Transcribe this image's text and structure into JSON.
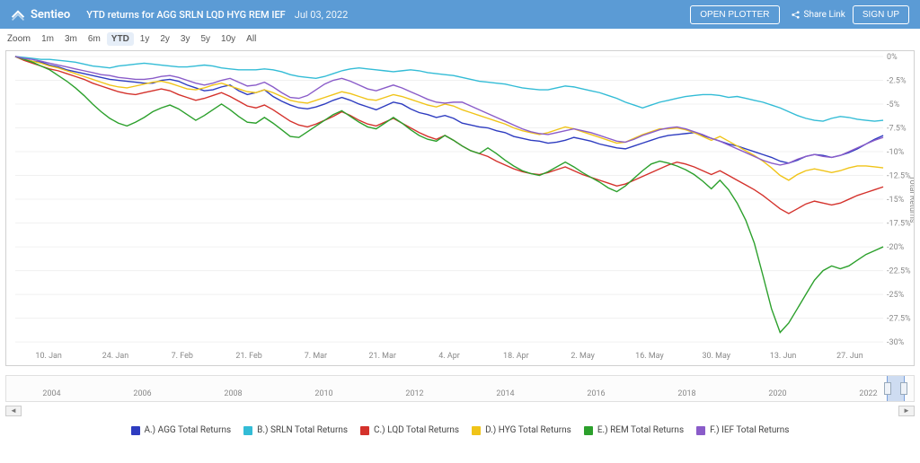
{
  "header": {
    "brand": "Sentieo",
    "title": "YTD returns for AGG SRLN LQD HYG REM IEF",
    "date": "Jul 03, 2022",
    "open_plotter_label": "OPEN PLOTTER",
    "share_label": "Share Link",
    "signup_label": "SIGN UP"
  },
  "zoom": {
    "label": "Zoom",
    "options": [
      "1m",
      "3m",
      "6m",
      "YTD",
      "1y",
      "2y",
      "3y",
      "5y",
      "10y",
      "All"
    ],
    "active": "YTD"
  },
  "chart": {
    "y_title": "Total Returns",
    "ylim": [
      -30,
      0
    ],
    "ytick_step": 2.5,
    "x_labels": [
      "10. Jan",
      "24. Jan",
      "7. Feb",
      "21. Feb",
      "7. Mar",
      "21. Mar",
      "4. Apr",
      "18. Apr",
      "2. May",
      "16. May",
      "30. May",
      "13. Jun",
      "27. Jun"
    ],
    "grid_color": "#f0f0f0",
    "series": [
      {
        "name": "A.) AGG Total Returns",
        "color": "#2e3cc0",
        "values": [
          0,
          -0.3,
          -0.5,
          -0.6,
          -0.9,
          -1.1,
          -1.4,
          -1.6,
          -1.8,
          -2.0,
          -2.2,
          -2.4,
          -2.5,
          -2.6,
          -2.7,
          -2.8,
          -2.8,
          -2.5,
          -2.4,
          -2.6,
          -3.0,
          -3.3,
          -3.6,
          -3.5,
          -3.2,
          -3.0,
          -3.6,
          -4.0,
          -3.8,
          -3.5,
          -4.2,
          -4.7,
          -5.1,
          -5.4,
          -5.5,
          -5.3,
          -5.0,
          -4.6,
          -4.3,
          -4.6,
          -5.0,
          -5.3,
          -5.6,
          -5.2,
          -4.8,
          -5.0,
          -5.5,
          -5.9,
          -6.1,
          -6.4,
          -6.2,
          -6.5,
          -7.0,
          -7.2,
          -7.4,
          -7.5,
          -7.8,
          -8.0,
          -8.4,
          -8.6,
          -8.8,
          -8.9,
          -9.1,
          -9.0,
          -8.8,
          -8.5,
          -8.7,
          -8.9,
          -9.2,
          -9.4,
          -9.6,
          -9.7,
          -9.4,
          -9.1,
          -8.8,
          -8.5,
          -8.3,
          -8.2,
          -8.1,
          -8.0,
          -8.3,
          -8.6,
          -8.9,
          -9.2,
          -9.4,
          -9.7,
          -10.0,
          -10.3,
          -10.6,
          -11.0,
          -11.2,
          -10.9,
          -10.5,
          -10.3,
          -10.4,
          -10.6,
          -10.4,
          -10.1,
          -9.7,
          -9.2,
          -8.7,
          -8.3
        ]
      },
      {
        "name": "B.) SRLN Total Returns",
        "color": "#33bcd6",
        "values": [
          0,
          -0.1,
          -0.2,
          -0.3,
          -0.3,
          -0.4,
          -0.5,
          -0.6,
          -0.8,
          -1.0,
          -1.1,
          -1.2,
          -1.0,
          -0.9,
          -0.8,
          -0.7,
          -0.8,
          -0.9,
          -1.0,
          -1.1,
          -1.1,
          -1.0,
          -0.9,
          -1.0,
          -1.2,
          -1.3,
          -1.4,
          -1.4,
          -1.4,
          -1.3,
          -1.4,
          -1.6,
          -1.9,
          -2.1,
          -2.2,
          -2.3,
          -2.1,
          -1.8,
          -1.5,
          -1.3,
          -1.2,
          -1.3,
          -1.4,
          -1.5,
          -1.6,
          -1.5,
          -1.4,
          -1.5,
          -1.7,
          -1.8,
          -1.9,
          -2.0,
          -2.2,
          -2.4,
          -2.6,
          -2.7,
          -2.8,
          -2.9,
          -3.1,
          -3.3,
          -3.4,
          -3.5,
          -3.5,
          -3.3,
          -3.1,
          -3.2,
          -3.4,
          -3.6,
          -3.8,
          -4.1,
          -4.4,
          -4.8,
          -5.1,
          -5.4,
          -5.1,
          -4.8,
          -4.6,
          -4.4,
          -4.2,
          -4.1,
          -4.0,
          -4.0,
          -4.1,
          -4.3,
          -4.2,
          -4.4,
          -4.6,
          -4.8,
          -5.1,
          -5.4,
          -5.8,
          -6.2,
          -6.5,
          -6.7,
          -6.8,
          -6.5,
          -6.3,
          -6.4,
          -6.6,
          -6.7,
          -6.8,
          -6.7
        ]
      },
      {
        "name": "C.) LQD Total Returns",
        "color": "#d4322c",
        "values": [
          0,
          -0.4,
          -0.7,
          -1.0,
          -1.3,
          -1.5,
          -1.8,
          -2.1,
          -2.4,
          -2.8,
          -3.1,
          -3.4,
          -3.7,
          -3.9,
          -4.0,
          -3.8,
          -3.6,
          -3.4,
          -3.6,
          -4.0,
          -4.3,
          -4.6,
          -4.4,
          -4.1,
          -3.8,
          -4.2,
          -4.7,
          -5.2,
          -5.4,
          -5.1,
          -5.6,
          -6.2,
          -6.8,
          -7.2,
          -7.4,
          -7.1,
          -6.7,
          -6.3,
          -5.8,
          -6.2,
          -6.7,
          -7.1,
          -7.3,
          -6.9,
          -6.5,
          -7.0,
          -7.5,
          -8.0,
          -8.4,
          -8.7,
          -8.3,
          -8.8,
          -9.4,
          -9.9,
          -10.2,
          -10.5,
          -11.0,
          -11.4,
          -11.8,
          -12.1,
          -12.3,
          -12.4,
          -12.2,
          -11.9,
          -11.6,
          -12.0,
          -12.4,
          -12.7,
          -13.0,
          -13.3,
          -13.6,
          -13.4,
          -13.0,
          -12.6,
          -12.2,
          -11.8,
          -11.4,
          -11.1,
          -11.3,
          -11.6,
          -12.0,
          -12.4,
          -12.0,
          -12.5,
          -13.0,
          -13.5,
          -14.0,
          -14.6,
          -15.3,
          -16.0,
          -16.5,
          -16.0,
          -15.5,
          -15.2,
          -15.4,
          -15.6,
          -15.4,
          -15.0,
          -14.6,
          -14.3,
          -14.0,
          -13.7
        ]
      },
      {
        "name": "D.) HYG Total Returns",
        "color": "#f0c419",
        "values": [
          0,
          -0.3,
          -0.5,
          -0.7,
          -1.0,
          -1.2,
          -1.5,
          -1.8,
          -2.1,
          -2.4,
          -2.7,
          -3.0,
          -3.2,
          -3.3,
          -3.1,
          -2.9,
          -2.7,
          -2.6,
          -2.8,
          -3.1,
          -3.4,
          -3.5,
          -3.3,
          -3.0,
          -2.8,
          -3.1,
          -3.4,
          -3.7,
          -3.8,
          -3.5,
          -3.8,
          -4.2,
          -4.6,
          -4.8,
          -4.9,
          -4.6,
          -4.3,
          -4.0,
          -3.7,
          -3.9,
          -4.2,
          -4.5,
          -4.6,
          -4.3,
          -4.0,
          -4.2,
          -4.5,
          -4.8,
          -5.1,
          -5.3,
          -5.0,
          -5.2,
          -5.6,
          -5.9,
          -6.2,
          -6.5,
          -6.8,
          -7.1,
          -7.5,
          -7.8,
          -8.0,
          -8.2,
          -8.0,
          -7.7,
          -7.4,
          -7.6,
          -7.9,
          -8.2,
          -8.5,
          -8.8,
          -9.1,
          -9.0,
          -8.6,
          -8.2,
          -7.9,
          -7.6,
          -7.6,
          -7.5,
          -7.7,
          -8.0,
          -8.4,
          -8.8,
          -8.4,
          -8.9,
          -9.4,
          -9.9,
          -10.4,
          -11.0,
          -11.7,
          -12.5,
          -13.0,
          -12.4,
          -12.0,
          -11.8,
          -12.0,
          -12.2,
          -12.0,
          -11.7,
          -11.5,
          -11.5,
          -11.6,
          -11.7
        ]
      },
      {
        "name": "E.) REM Total Returns",
        "color": "#2ca02c",
        "values": [
          0,
          -0.3,
          -0.6,
          -1.0,
          -1.4,
          -2.0,
          -2.6,
          -3.3,
          -4.1,
          -5.0,
          -5.8,
          -6.5,
          -7.0,
          -7.3,
          -6.9,
          -6.4,
          -5.8,
          -5.4,
          -5.1,
          -5.5,
          -6.1,
          -6.7,
          -6.2,
          -5.6,
          -5.0,
          -5.6,
          -6.3,
          -6.9,
          -7.0,
          -6.4,
          -7.0,
          -7.7,
          -8.4,
          -8.5,
          -7.9,
          -7.3,
          -6.7,
          -6.1,
          -5.7,
          -6.3,
          -6.9,
          -7.4,
          -7.6,
          -7.0,
          -6.4,
          -7.0,
          -7.7,
          -8.3,
          -8.7,
          -8.9,
          -8.3,
          -8.8,
          -9.4,
          -9.9,
          -10.2,
          -9.6,
          -10.2,
          -10.9,
          -11.5,
          -12.0,
          -12.3,
          -12.5,
          -12.1,
          -11.6,
          -11.1,
          -11.6,
          -12.2,
          -12.7,
          -13.2,
          -13.8,
          -14.2,
          -13.6,
          -12.8,
          -12.0,
          -11.3,
          -11.0,
          -11.2,
          -11.5,
          -11.9,
          -12.4,
          -13.1,
          -13.9,
          -13.0,
          -14.0,
          -15.4,
          -17.2,
          -19.6,
          -23.0,
          -26.5,
          -29.0,
          -28.0,
          -26.5,
          -25.0,
          -23.5,
          -22.5,
          -22.0,
          -22.3,
          -22.0,
          -21.4,
          -20.8,
          -20.4,
          -20.0
        ]
      },
      {
        "name": "F.) IEF Total Returns",
        "color": "#8a5cc9",
        "values": [
          0,
          -0.2,
          -0.3,
          -0.5,
          -0.7,
          -0.9,
          -1.1,
          -1.3,
          -1.5,
          -1.7,
          -1.9,
          -2.0,
          -2.2,
          -2.3,
          -2.4,
          -2.4,
          -2.3,
          -2.1,
          -2.0,
          -2.2,
          -2.5,
          -2.8,
          -3.0,
          -2.8,
          -2.5,
          -2.3,
          -2.7,
          -3.1,
          -3.0,
          -2.7,
          -3.2,
          -3.8,
          -4.3,
          -4.4,
          -4.1,
          -3.5,
          -2.9,
          -2.5,
          -2.3,
          -2.6,
          -3.0,
          -3.4,
          -3.6,
          -3.3,
          -3.0,
          -3.3,
          -3.7,
          -4.1,
          -4.5,
          -4.8,
          -4.9,
          -4.8,
          -4.8,
          -5.2,
          -5.6,
          -6.0,
          -6.4,
          -6.8,
          -7.2,
          -7.6,
          -7.9,
          -8.1,
          -8.2,
          -8.0,
          -7.8,
          -7.6,
          -7.8,
          -8.0,
          -8.3,
          -8.6,
          -8.9,
          -9.0,
          -8.7,
          -8.3,
          -8.0,
          -7.7,
          -7.5,
          -7.4,
          -7.6,
          -7.9,
          -8.2,
          -8.6,
          -8.9,
          -9.3,
          -9.7,
          -10.1,
          -10.5,
          -10.9,
          -11.2,
          -11.4,
          -11.2,
          -10.8,
          -10.5,
          -10.3,
          -10.5,
          -10.6,
          -10.4,
          -10.0,
          -9.6,
          -9.2,
          -8.8,
          -8.5
        ]
      }
    ]
  },
  "navigator": {
    "years": [
      "2004",
      "2006",
      "2008",
      "2010",
      "2012",
      "2014",
      "2016",
      "2018",
      "2020",
      "2022"
    ]
  },
  "legend_items": [
    {
      "label": "A.) AGG Total Returns",
      "color": "#2e3cc0"
    },
    {
      "label": "B.) SRLN Total Returns",
      "color": "#33bcd6"
    },
    {
      "label": "C.) LQD Total Returns",
      "color": "#d4322c"
    },
    {
      "label": "D.) HYG Total Returns",
      "color": "#f0c419"
    },
    {
      "label": "E.) REM Total Returns",
      "color": "#2ca02c"
    },
    {
      "label": "F.) IEF Total Returns",
      "color": "#8a5cc9"
    }
  ]
}
